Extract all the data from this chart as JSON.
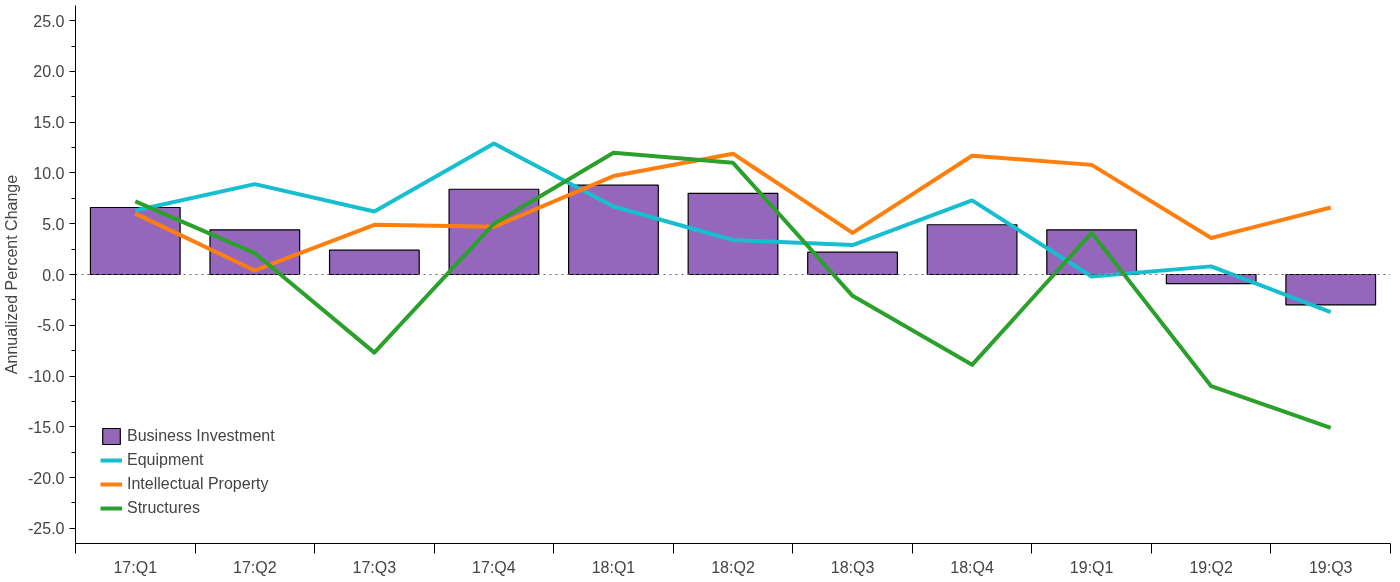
{
  "chart_data": {
    "type": "bar",
    "ylabel": "Annualized Percent Change",
    "categories": [
      "17:Q1",
      "17:Q2",
      "17:Q3",
      "17:Q4",
      "18:Q1",
      "18:Q2",
      "18:Q3",
      "18:Q4",
      "19:Q1",
      "19:Q2",
      "19:Q3"
    ],
    "series": [
      {
        "name": "Business Investment",
        "color": "#9467bd",
        "values": [
          6.6,
          4.4,
          2.4,
          8.4,
          8.8,
          8.0,
          2.2,
          4.9,
          4.4,
          -0.9,
          -3.0
        ]
      },
      {
        "name": "Equipment",
        "type": "line",
        "color": "#17becf",
        "values": [
          6.3,
          8.9,
          6.2,
          12.9,
          6.7,
          3.4,
          2.9,
          7.3,
          -0.2,
          0.8,
          -3.7
        ]
      },
      {
        "name": "Intellectual Property",
        "type": "line",
        "color": "#ff7f0e",
        "values": [
          6.0,
          0.4,
          4.9,
          4.7,
          9.7,
          11.9,
          4.1,
          11.7,
          10.8,
          3.6,
          6.6
        ]
      },
      {
        "name": "Structures",
        "type": "line",
        "color": "#2ca02c",
        "values": [
          7.2,
          2.1,
          -7.7,
          5.0,
          12.0,
          11.0,
          -2.1,
          -8.9,
          4.1,
          -11.0,
          -15.1
        ]
      }
    ],
    "ylim": [
      -26.5,
      26.5
    ],
    "yticks": [
      {
        "value": -25,
        "label": "-25.0"
      },
      {
        "value": -20,
        "label": "-20.0"
      },
      {
        "value": -15,
        "label": "-15.0"
      },
      {
        "value": -10,
        "label": "-10.0"
      },
      {
        "value": -5,
        "label": "-5.0"
      },
      {
        "value": 0,
        "label": "0.0"
      },
      {
        "value": 5,
        "label": "5.0"
      },
      {
        "value": 10,
        "label": "10.0"
      },
      {
        "value": 15,
        "label": "15.0"
      },
      {
        "value": 20,
        "label": "20.0"
      },
      {
        "value": 25,
        "label": "25.0"
      }
    ],
    "ref_lines": [
      {
        "axis": "y",
        "value": 0,
        "color": "#666666",
        "line_style": "dotted"
      }
    ],
    "legend": "bottom left",
    "grid": false,
    "line_style": "solid",
    "marker": "none"
  }
}
